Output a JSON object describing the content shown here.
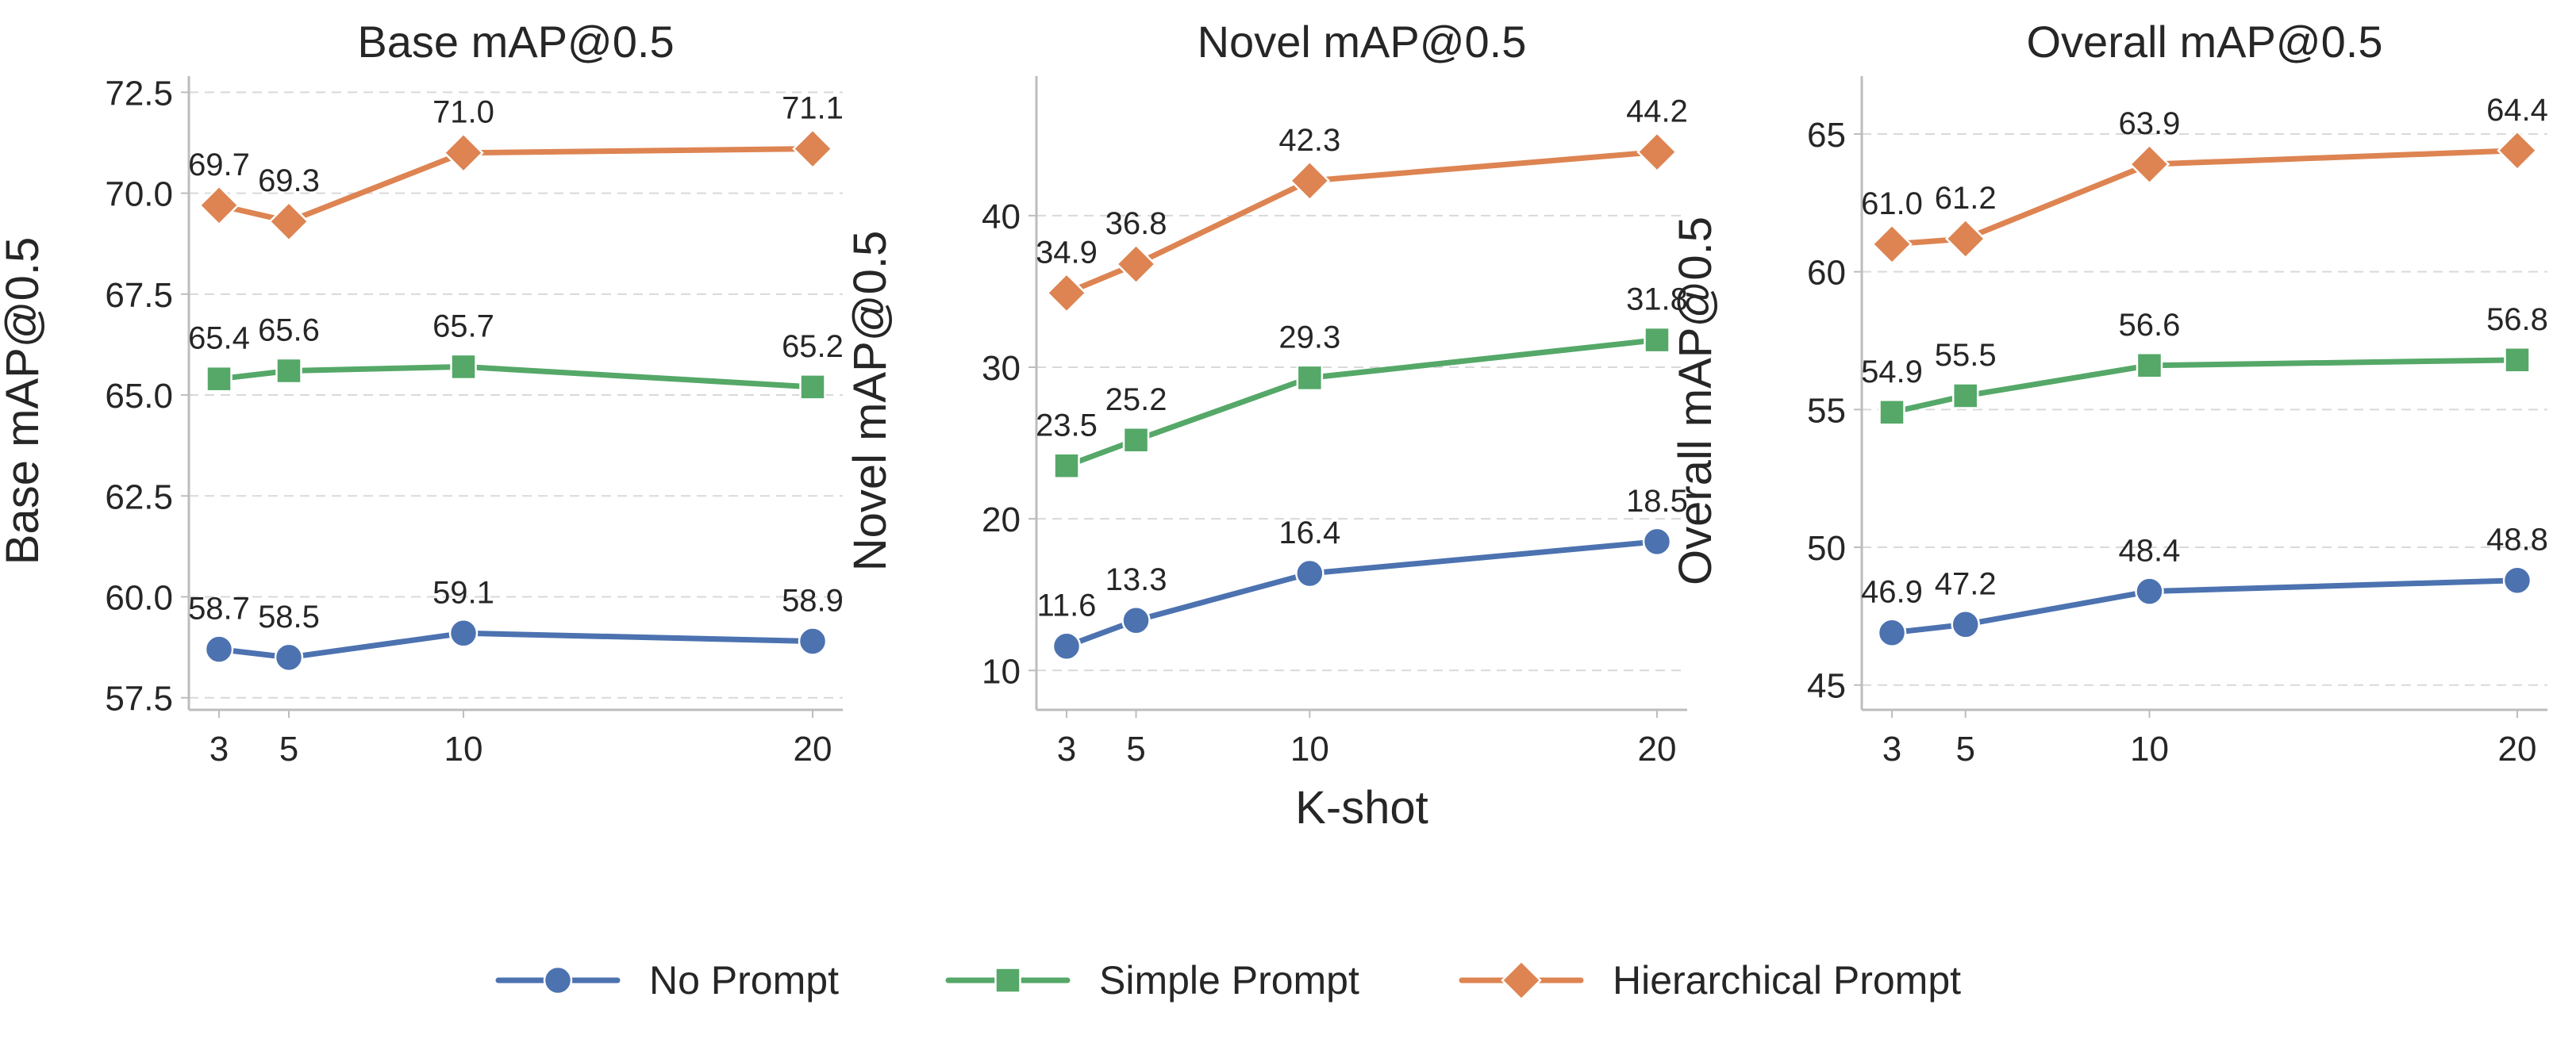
{
  "chart_data": {
    "type": "line",
    "x": [
      3,
      5,
      10,
      20
    ],
    "xlabel": "K-shot",
    "series_style": [
      {
        "name": "No Prompt",
        "color": "#4c72b0",
        "marker": "circle"
      },
      {
        "name": "Simple Prompt",
        "color": "#55a868",
        "marker": "square"
      },
      {
        "name": "Hierarchical Prompt",
        "color": "#dd8452",
        "marker": "diamond"
      }
    ],
    "legend": {
      "position": "bottom-center",
      "entries": [
        "No Prompt",
        "Simple Prompt",
        "Hierarchical Prompt"
      ]
    },
    "panels": [
      {
        "title": "Base mAP@0.5",
        "ylabel": "Base mAP@0.5",
        "ylim": [
          57.2,
          72.9
        ],
        "yticks": [
          57.5,
          60.0,
          62.5,
          65.0,
          67.5,
          70.0,
          72.5
        ],
        "ytick_labels": [
          "57.5",
          "60.0",
          "62.5",
          "65.0",
          "67.5",
          "70.0",
          "72.5"
        ],
        "series": [
          {
            "name": "No Prompt",
            "values": [
              58.7,
              58.5,
              59.1,
              58.9
            ],
            "labels": [
              "58.7",
              "58.5",
              "59.1",
              "58.9"
            ]
          },
          {
            "name": "Simple Prompt",
            "values": [
              65.4,
              65.6,
              65.7,
              65.2
            ],
            "labels": [
              "65.4",
              "65.6",
              "65.7",
              "65.2"
            ]
          },
          {
            "name": "Hierarchical Prompt",
            "values": [
              69.7,
              69.3,
              71.0,
              71.1
            ],
            "labels": [
              "69.7",
              "69.3",
              "71.0",
              "71.1"
            ]
          }
        ]
      },
      {
        "title": "Novel mAP@0.5",
        "ylabel": "Novel mAP@0.5",
        "ylim": [
          7.4,
          49.2
        ],
        "yticks": [
          10,
          20,
          30,
          40
        ],
        "ytick_labels": [
          "10",
          "20",
          "30",
          "40"
        ],
        "series": [
          {
            "name": "No Prompt",
            "values": [
              11.6,
              13.3,
              16.4,
              18.5
            ],
            "labels": [
              "11.6",
              "13.3",
              "16.4",
              "18.5"
            ]
          },
          {
            "name": "Simple Prompt",
            "values": [
              23.5,
              25.2,
              29.3,
              31.8
            ],
            "labels": [
              "23.5",
              "25.2",
              "29.3",
              "31.8"
            ]
          },
          {
            "name": "Hierarchical Prompt",
            "values": [
              34.9,
              36.8,
              42.3,
              44.2
            ],
            "labels": [
              "34.9",
              "36.8",
              "42.3",
              "44.2"
            ]
          }
        ]
      },
      {
        "title": "Overall mAP@0.5",
        "ylabel": "Overall mAP@0.5",
        "ylim": [
          44.1,
          67.1
        ],
        "yticks": [
          45,
          50,
          55,
          60,
          65
        ],
        "ytick_labels": [
          "45",
          "50",
          "55",
          "60",
          "65"
        ],
        "series": [
          {
            "name": "No Prompt",
            "values": [
              46.9,
              47.2,
              48.4,
              48.8
            ],
            "labels": [
              "46.9",
              "47.2",
              "48.4",
              "48.8"
            ]
          },
          {
            "name": "Simple Prompt",
            "values": [
              54.9,
              55.5,
              56.6,
              56.8
            ],
            "labels": [
              "54.9",
              "55.5",
              "56.6",
              "56.8"
            ]
          },
          {
            "name": "Hierarchical Prompt",
            "values": [
              61.0,
              61.2,
              63.9,
              64.4
            ],
            "labels": [
              "61.0",
              "61.2",
              "63.9",
              "64.4"
            ]
          }
        ]
      }
    ],
    "grid": {
      "y": true,
      "x": false,
      "style": "dashed"
    }
  }
}
